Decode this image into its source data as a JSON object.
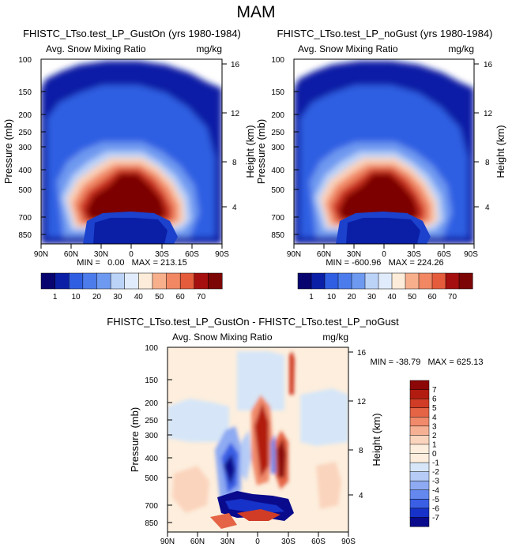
{
  "figure_title": "MAM",
  "colors": {
    "seq": [
      "#08046f",
      "#0a1fa6",
      "#1c41cc",
      "#2f5ee2",
      "#4c7ceb",
      "#6e99f0",
      "#94b6f4",
      "#bcd3f8",
      "#e0ebfb",
      "#fdecd9",
      "#fbd2b8",
      "#f7af8c",
      "#f18763",
      "#e45c3b",
      "#c92d1b",
      "#a50f0f",
      "#7c0606"
    ],
    "diff": [
      "#0a0a8c",
      "#1632c8",
      "#3a5fe4",
      "#6488ee",
      "#8eaaf2",
      "#b6ccf6",
      "#d6e6f8",
      "#fdeedd",
      "#fbd4bd",
      "#f6b195",
      "#f08a6a",
      "#e46445",
      "#d03c25",
      "#b21b10",
      "#8c0707"
    ]
  },
  "chart_data": [
    {
      "type": "heatmap",
      "title": "FHISTC_LTso.test_LP_GustOn (yrs 1980-1984)",
      "variable_label": "Avg. Snow Mixing Ratio",
      "units_label": "mg/kg",
      "xlabel": "",
      "ylabel": "Pressure (mb)",
      "ylabel_right": "Height (km)",
      "x_tick_labels": [
        "90N",
        "60N",
        "30N",
        "0",
        "30S",
        "60S",
        "90S"
      ],
      "y_tick_labels": [
        "100",
        "150",
        "200",
        "250",
        "300",
        "400",
        "500",
        "700",
        "850"
      ],
      "y_tick_values": [
        100,
        150,
        200,
        250,
        300,
        400,
        500,
        700,
        850
      ],
      "ylim": [
        100,
        925
      ],
      "right_tick_labels": [
        "16",
        "12",
        "8",
        "4"
      ],
      "right_tick_values": [
        16,
        12,
        8,
        4
      ],
      "stats_text": "MIN =   0.00   MAX = 213.15",
      "colorbar": {
        "labels": [
          "1",
          "10",
          "20",
          "30",
          "40",
          "50",
          "60",
          "70"
        ],
        "n_colors": 13
      },
      "variant": "seq"
    },
    {
      "type": "heatmap",
      "title": "FHISTC_LTso.test_LP_noGust (yrs 1980-1984)",
      "variable_label": "Avg. Snow Mixing Ratio",
      "units_label": "mg/kg",
      "xlabel": "",
      "ylabel": "Pressure (mb)",
      "ylabel_right": "Height (km)",
      "x_tick_labels": [
        "90N",
        "60N",
        "30N",
        "0",
        "30S",
        "60S",
        "90S"
      ],
      "y_tick_labels": [
        "100",
        "150",
        "200",
        "250",
        "300",
        "400",
        "500",
        "700",
        "850"
      ],
      "y_tick_values": [
        100,
        150,
        200,
        250,
        300,
        400,
        500,
        700,
        850
      ],
      "ylim": [
        100,
        925
      ],
      "right_tick_labels": [
        "16",
        "12",
        "8",
        "4"
      ],
      "right_tick_values": [
        16,
        12,
        8,
        4
      ],
      "stats_text": "MIN = -600.96   MAX = 224.26",
      "colorbar": {
        "labels": [
          "1",
          "10",
          "20",
          "30",
          "40",
          "50",
          "60",
          "70"
        ],
        "n_colors": 13
      },
      "variant": "seq"
    },
    {
      "type": "heatmap",
      "title": "FHISTC_LTso.test_LP_GustOn - FHISTC_LTso.test_LP_noGust",
      "variable_label": "Avg. Snow Mixing Ratio",
      "units_label": "mg/kg",
      "xlabel": "",
      "ylabel": "Pressure (mb)",
      "ylabel_right": "Height (km)",
      "x_tick_labels": [
        "90N",
        "60N",
        "30N",
        "0",
        "30S",
        "60S",
        "90S"
      ],
      "y_tick_labels": [
        "100",
        "150",
        "200",
        "250",
        "300",
        "400",
        "500",
        "700",
        "850"
      ],
      "y_tick_values": [
        100,
        150,
        200,
        250,
        300,
        400,
        500,
        700,
        850
      ],
      "ylim": [
        100,
        925
      ],
      "right_tick_labels": [
        "16",
        "12",
        "8",
        "4"
      ],
      "right_tick_values": [
        16,
        12,
        8,
        4
      ],
      "stats_text": "MIN = -38.79   MAX = 625.13",
      "colorbar": {
        "labels": [
          "7",
          "6",
          "5",
          "4",
          "3",
          "2",
          "1",
          "0",
          "-1",
          "-2",
          "-3",
          "-4",
          "-5",
          "-6",
          "-7"
        ],
        "orientation": "vertical"
      },
      "variant": "diff"
    }
  ]
}
